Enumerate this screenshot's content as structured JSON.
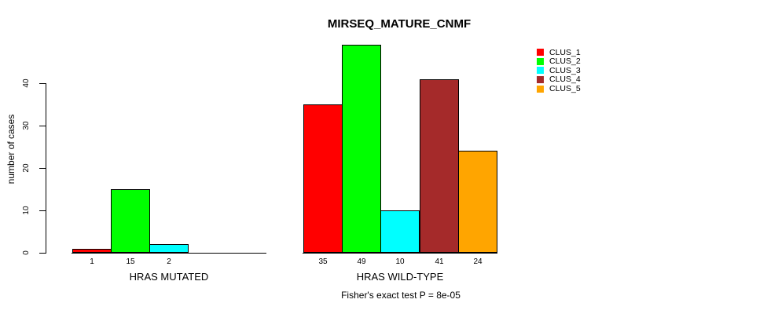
{
  "chart_data": {
    "type": "bar",
    "title": "MIRSEQ_MATURE_CNMF",
    "ylabel": "number of cases",
    "yticks": [
      0,
      10,
      20,
      30,
      40
    ],
    "ylim": [
      0,
      49
    ],
    "grid": false,
    "legend_position": "top-right",
    "caption": "Fisher's exact test P = 8e-05",
    "clusters": [
      {
        "name": "CLUS_1",
        "color": "#FF0000"
      },
      {
        "name": "CLUS_2",
        "color": "#00FF00"
      },
      {
        "name": "CLUS_3",
        "color": "#00FFFF"
      },
      {
        "name": "CLUS_4",
        "color": "#A52A2A"
      },
      {
        "name": "CLUS_5",
        "color": "#FFA500"
      }
    ],
    "groups": [
      {
        "label": "HRAS MUTATED",
        "values": [
          1,
          15,
          2,
          0,
          0
        ]
      },
      {
        "label": "HRAS WILD-TYPE",
        "values": [
          35,
          49,
          10,
          41,
          24
        ]
      }
    ]
  }
}
